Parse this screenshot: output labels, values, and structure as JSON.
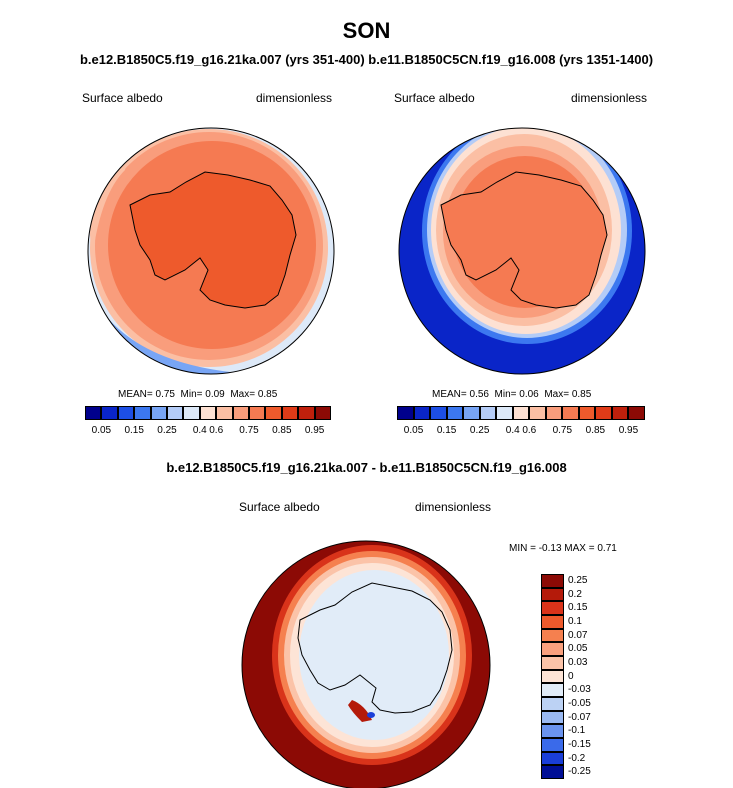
{
  "title": "SON",
  "subtitle": "b.e12.B1850C5.f19_g16.21ka.007 (yrs 351-400) b.e11.B1850C5CN.f19_g16.008 (yrs 1351-1400)",
  "panels": [
    {
      "variable": "Surface albedo",
      "units": "dimensionless",
      "stats": {
        "mean": "MEAN=  0.75",
        "min": "Min=  0.09",
        "max": "Max=  0.85"
      }
    },
    {
      "variable": "Surface albedo",
      "units": "dimensionless",
      "stats": {
        "mean": "MEAN=  0.56",
        "min": "Min=  0.06",
        "max": "Max=  0.85"
      }
    }
  ],
  "diff_panel": {
    "title": "b.e12.B1850C5.f19_g16.21ka.007 - b.e11.B1850C5CN.f19_g16.008",
    "variable": "Surface albedo",
    "units": "dimensionless",
    "minmax": "MIN =  -0.13 MAX =   0.71"
  },
  "colorbar_abs": {
    "colors": [
      "#00008c",
      "#0a25c8",
      "#1d4fe6",
      "#3c78f0",
      "#78a5f5",
      "#b4ccf7",
      "#dde9f8",
      "#fde1d3",
      "#fbbfa4",
      "#f99d7c",
      "#f57a52",
      "#ee5a2c",
      "#e03b18",
      "#c0200c",
      "#8c0a05"
    ],
    "tick_labels": [
      "0.05",
      "0.15",
      "0.25",
      "0.4",
      "0.6",
      "0.75",
      "0.85",
      "0.95"
    ]
  },
  "colorbar_diff": {
    "colors": [
      "#8c0a05",
      "#b41a0a",
      "#d9331a",
      "#ee5a2c",
      "#f5804f",
      "#f9a07e",
      "#fbc3a8",
      "#fde4d6",
      "#e1ecf8",
      "#bcd2f4",
      "#9ab9f2",
      "#6a93ee",
      "#3a6aea",
      "#1a3ed8",
      "#000e96"
    ],
    "tick_labels": [
      "0.25",
      "0.2",
      "0.15",
      "0.1",
      "0.07",
      "0.05",
      "0.03",
      "0",
      "-0.03",
      "-0.05",
      "-0.07",
      "-0.1",
      "-0.15",
      "-0.2",
      "-0.25"
    ]
  }
}
